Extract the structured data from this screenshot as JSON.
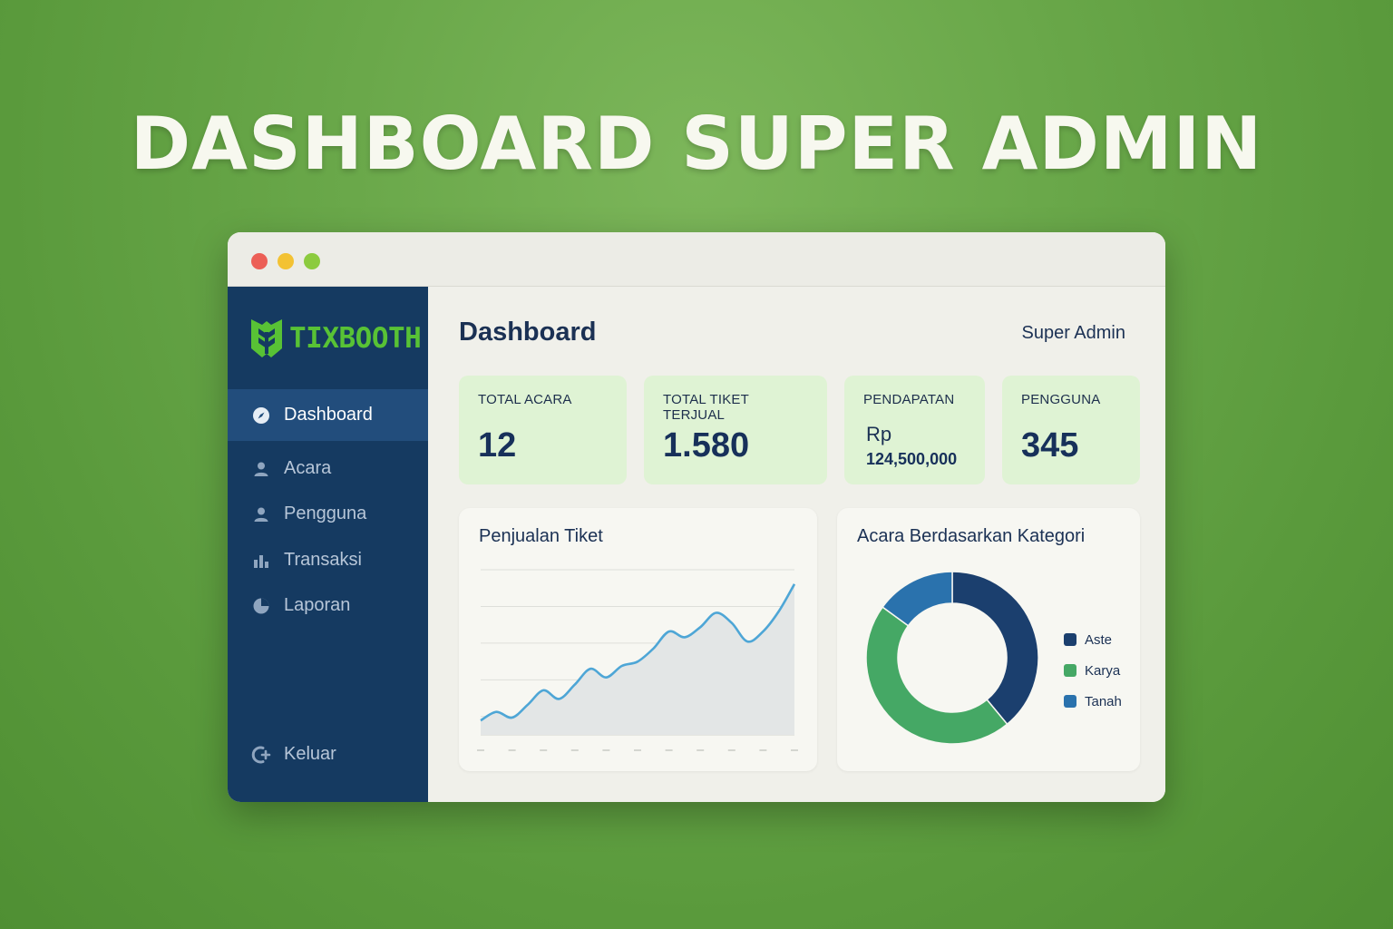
{
  "hero": {
    "title": "DASHBOARD SUPER ADMIN"
  },
  "app": {
    "name": "TIXBOOTH",
    "brand_color": "#58c235",
    "sidebar_color": "#153a61"
  },
  "sidebar": {
    "items": [
      {
        "label": "Dashboard",
        "icon": "compass-icon",
        "active": true
      },
      {
        "label": "Acara",
        "icon": "user-icon",
        "active": false
      },
      {
        "label": "Pengguna",
        "icon": "user-icon",
        "active": false
      },
      {
        "label": "Transaksi",
        "icon": "bar-chart-icon",
        "active": false
      },
      {
        "label": "Laporan",
        "icon": "pie-chart-icon",
        "active": false
      }
    ],
    "logout_label": "Keluar"
  },
  "header": {
    "title": "Dashboard",
    "user": "Super Admin"
  },
  "stats": [
    {
      "label": "TOTAL ACARA",
      "value": "12"
    },
    {
      "label": "TOTAL TIKET TERJUAL",
      "value": "1.580"
    },
    {
      "label": "PENDAPATAN",
      "prefix": "Rp",
      "value": "124,500,000"
    },
    {
      "label": "PENGGUNA",
      "value": "345"
    }
  ],
  "panels": {
    "sales_title": "Penjualan Tiket",
    "category_title": "Acara Berdasarkan Kategori"
  },
  "chart_data": [
    {
      "type": "area",
      "title": "Penjualan Tiket",
      "x": [
        0,
        1,
        2,
        3,
        4,
        5,
        6,
        7,
        8,
        9,
        10,
        11,
        12,
        13,
        14,
        15,
        16,
        17,
        18,
        19,
        20
      ],
      "values": [
        10,
        16,
        12,
        21,
        31,
        25,
        35,
        46,
        40,
        48,
        51,
        60,
        72,
        68,
        75,
        85,
        78,
        65,
        72,
        86,
        105
      ],
      "ylim": [
        0,
        115
      ],
      "grid": true,
      "color": "#4ea6d6",
      "fill": "#e3e6e6"
    },
    {
      "type": "pie",
      "title": "Acara Berdasarkan Kategori",
      "labels": [
        "Aste",
        "Karya",
        "Tanah"
      ],
      "values": [
        39,
        46,
        15
      ],
      "colors": [
        "#1b3f6e",
        "#45a865",
        "#2a72ad"
      ],
      "legend": "right"
    }
  ]
}
